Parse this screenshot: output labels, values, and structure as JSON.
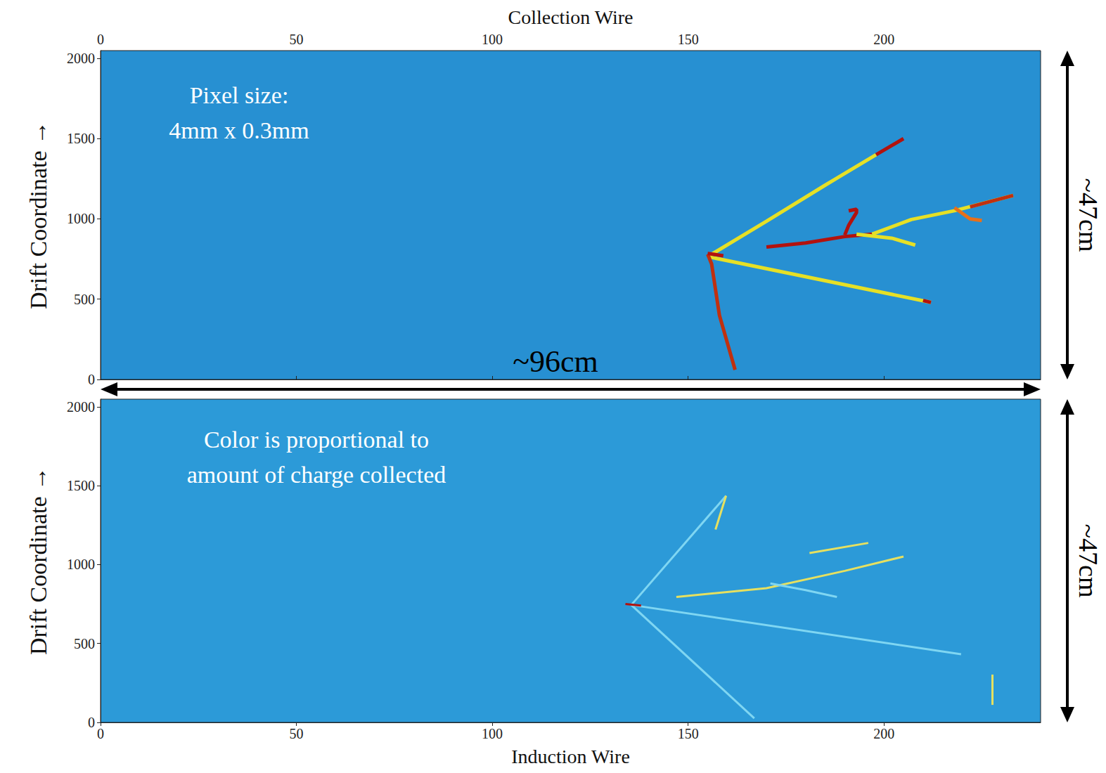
{
  "chart_data": [
    {
      "type": "line",
      "x_label": "Collection Wire",
      "y_label": "Drift Coordinate →",
      "xlim": [
        0,
        240
      ],
      "xticks": [
        0,
        50,
        100,
        150,
        200
      ],
      "ylim": [
        0,
        2048
      ],
      "yticks": [
        0,
        500,
        1000,
        1500,
        2000
      ],
      "grid": false,
      "note": [
        "Pixel size:",
        "4mm x 0.3mm"
      ],
      "width_label": "~96cm",
      "height_label": "~47cm",
      "series": [
        {
          "color": "#e6e026",
          "x": [
            155,
            170,
            185,
            198
          ],
          "values": [
            765,
            985,
            1210,
            1400
          ]
        },
        {
          "color": "#b3120e",
          "x": [
            198,
            205
          ],
          "values": [
            1400,
            1500
          ]
        },
        {
          "color": "#e6e026",
          "x": [
            155,
            212
          ],
          "values": [
            765,
            480
          ]
        },
        {
          "color": "#b3120e",
          "x": [
            210,
            212
          ],
          "values": [
            492,
            480
          ]
        },
        {
          "color": "#c0300f",
          "x": [
            155,
            156,
            158,
            162
          ],
          "values": [
            780,
            720,
            400,
            60
          ]
        },
        {
          "color": "#b3120e",
          "x": [
            155,
            159
          ],
          "values": [
            785,
            770
          ]
        },
        {
          "color": "#b3120e",
          "x": [
            170,
            180,
            190,
            197
          ],
          "values": [
            825,
            850,
            890,
            905
          ]
        },
        {
          "color": "#e6e026",
          "x": [
            197,
            207,
            218,
            233
          ],
          "values": [
            905,
            996,
            1051,
            1146
          ]
        },
        {
          "color": "#c0300f",
          "x": [
            222,
            233
          ],
          "values": [
            1075,
            1146
          ]
        },
        {
          "color": "#b3120e",
          "x": [
            190,
            191,
            193,
            193,
            191
          ],
          "values": [
            900,
            960,
            1040,
            1060,
            1050
          ]
        },
        {
          "color": "#e6e026",
          "x": [
            193,
            202,
            208
          ],
          "values": [
            905,
            880,
            837
          ]
        },
        {
          "color": "#e8701a",
          "x": [
            218,
            222,
            225
          ],
          "values": [
            1070,
            1000,
            990
          ]
        }
      ]
    },
    {
      "type": "line",
      "x_label": "Induction Wire",
      "y_label": "Drift Coordinate →",
      "xlim": [
        0,
        240
      ],
      "xticks": [
        0,
        50,
        100,
        150,
        200
      ],
      "ylim": [
        0,
        2048
      ],
      "yticks": [
        0,
        500,
        1000,
        1500,
        2000
      ],
      "grid": false,
      "note": [
        "Color is proportional to",
        "amount of charge collected"
      ],
      "height_label": "~47cm",
      "series": [
        {
          "color": "#7fd6f2",
          "x": [
            135.5,
            159.7
          ],
          "values": [
            744,
            1436
          ]
        },
        {
          "color": "#e6e060",
          "x": [
            157,
            159.7
          ],
          "values": [
            1222,
            1436
          ]
        },
        {
          "color": "#7fd6f2",
          "x": [
            135.5,
            219.7
          ],
          "values": [
            744,
            432
          ]
        },
        {
          "color": "#7fd6f2",
          "x": [
            135.5,
            166.9
          ],
          "values": [
            744,
            26
          ]
        },
        {
          "color": "#e6e060",
          "x": [
            147,
            170,
            190,
            205
          ],
          "values": [
            795,
            850,
            960,
            1051
          ]
        },
        {
          "color": "#e6e060",
          "x": [
            181,
            196
          ],
          "values": [
            1073,
            1137
          ]
        },
        {
          "color": "#7fd6f2",
          "x": [
            171,
            180,
            188
          ],
          "values": [
            880,
            838,
            795
          ]
        },
        {
          "color": "#e6e060",
          "x": [
            227.7,
            227.7
          ],
          "values": [
            303,
            111
          ]
        },
        {
          "color": "#b3120e",
          "x": [
            134,
            138
          ],
          "values": [
            750,
            740
          ]
        }
      ]
    }
  ]
}
